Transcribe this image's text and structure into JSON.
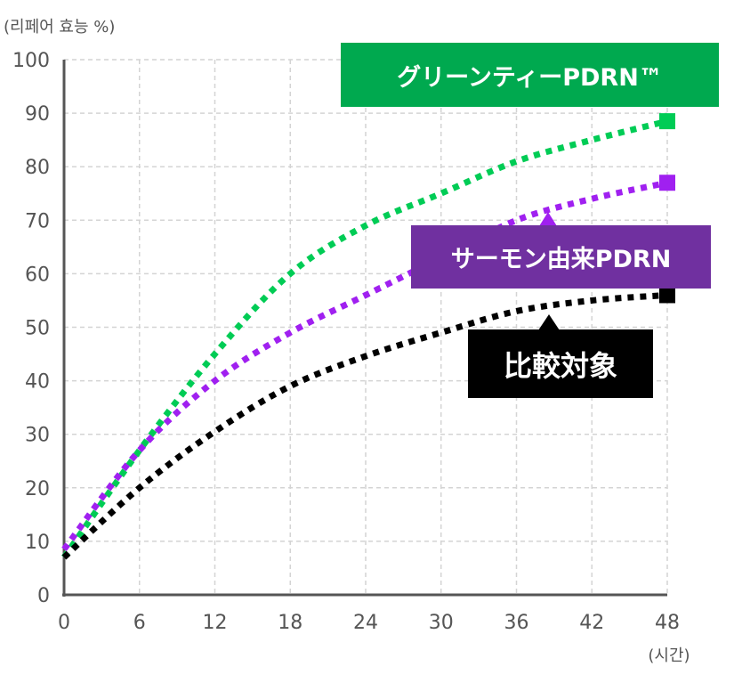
{
  "chart_data": {
    "type": "line",
    "ylabel": "(리페어 효능 %)",
    "xlabel": "(시간)",
    "xlim": [
      0,
      48
    ],
    "ylim": [
      0,
      100
    ],
    "x_ticks": [
      "0",
      "6",
      "12",
      "18",
      "24",
      "30",
      "36",
      "42",
      "48"
    ],
    "y_ticks": [
      "0",
      "10",
      "20",
      "30",
      "40",
      "50",
      "60",
      "70",
      "80",
      "90",
      "100"
    ],
    "grid": true,
    "x": [
      0,
      6,
      12,
      18,
      24,
      30,
      36,
      42,
      48
    ],
    "series": [
      {
        "name": "グリーンティーPDRN™",
        "color": "#00cc55",
        "label_bg": "#00a94f",
        "values": [
          7,
          27,
          45,
          60,
          69,
          75,
          81,
          85,
          88.5
        ]
      },
      {
        "name": "サーモン由来PDRN",
        "color": "#a020f0",
        "label_bg": "#7030a0",
        "values": [
          8.5,
          27,
          40,
          49,
          56,
          63,
          70,
          74,
          77
        ]
      },
      {
        "name": "比較対象",
        "color": "#000000",
        "label_bg": "#000000",
        "values": [
          7,
          20,
          30.5,
          39,
          44.6,
          49,
          53,
          55,
          56
        ]
      }
    ]
  }
}
